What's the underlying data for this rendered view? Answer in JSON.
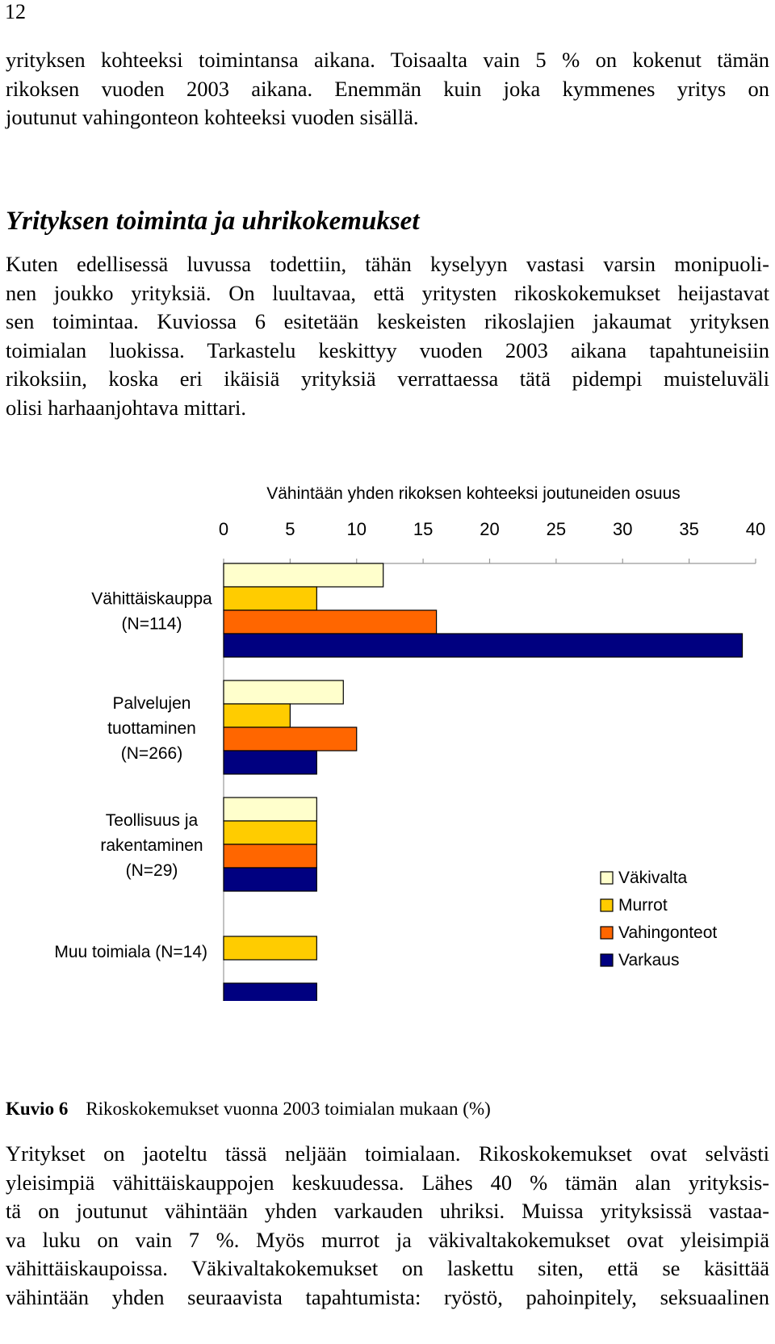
{
  "page_number": "12",
  "intro_lines": [
    "yrityksen kohteeksi toimintansa aikana. Toisaalta vain 5 % on kokenut tämän",
    "rikoksen vuoden 2003 aikana. Enemmän kuin joka kymmenes yritys on",
    "joutunut vahingonteon kohteeksi vuoden sisällä."
  ],
  "section_heading": "Yrityksen toiminta ja uhrikokemukset",
  "section_lines": [
    "Kuten edellisessä luvussa todettiin, tähän kyselyyn vastasi varsin monipuoli-",
    "nen joukko yrityksiä. On luultavaa, että yritysten rikoskokemukset heijastavat",
    "sen toimintaa. Kuviossa 6 esitetään keskeisten rikoslajien jakaumat yrityksen",
    "toimialan luokissa. Tarkastelu keskittyy vuoden 2003 aikana tapahtuneisiin",
    "rikoksiin, koska eri ikäisiä yrityksiä verrattaessa tätä pidempi muisteluväli",
    "olisi harhaanjohtava mittari."
  ],
  "chart_data": {
    "type": "bar",
    "orientation": "horizontal",
    "title": "Vähintään yhden rikoksen kohteeksi joutuneiden osuus",
    "xlim": [
      0,
      40
    ],
    "x_ticks": [
      "0",
      "5",
      "10",
      "15",
      "20",
      "25",
      "30",
      "35",
      "40"
    ],
    "categories": [
      [
        "Vähittäiskauppa",
        "(N=114)"
      ],
      [
        "Palvelujen",
        "tuottaminen",
        "(N=266)"
      ],
      [
        "Teollisuus ja",
        "rakentaminen",
        "(N=29)"
      ],
      [
        "Muu toimiala (N=14)"
      ]
    ],
    "series": [
      {
        "name": "Väkivalta",
        "color": "#ffffcc",
        "values": [
          12,
          9,
          7,
          0
        ]
      },
      {
        "name": "Murrot",
        "color": "#ffcc00",
        "values": [
          7,
          5,
          7,
          7
        ]
      },
      {
        "name": "Vahingonteot",
        "color": "#ff6600",
        "values": [
          16,
          10,
          7,
          0
        ]
      },
      {
        "name": "Varkaus",
        "color": "#000080",
        "values": [
          39,
          7,
          7,
          7
        ]
      }
    ],
    "legend_position": "bottom-right",
    "grid": false
  },
  "caption": {
    "label": "Kuvio 6",
    "text": "Rikoskokemukset vuonna 2003 toimialan mukaan (%)"
  },
  "outro_lines": [
    "Yritykset on jaoteltu tässä neljään toimialaan. Rikoskokemukset ovat selvästi",
    "yleisimpiä vähittäiskauppojen keskuudessa. Lähes 40 % tämän alan yrityksis-",
    "tä on joutunut vähintään yhden varkauden uhriksi. Muissa yrityksissä vastaa-",
    "va luku on vain 7 %. Myös murrot ja väkivaltakokemukset ovat yleisimpiä",
    "vähittäiskaupoissa. Väkivaltakokemukset on laskettu siten, että se käsittää",
    "vähintään yhden seuraavista tapahtumista: ryöstö, pahoinpitely, seksuaalinen"
  ]
}
